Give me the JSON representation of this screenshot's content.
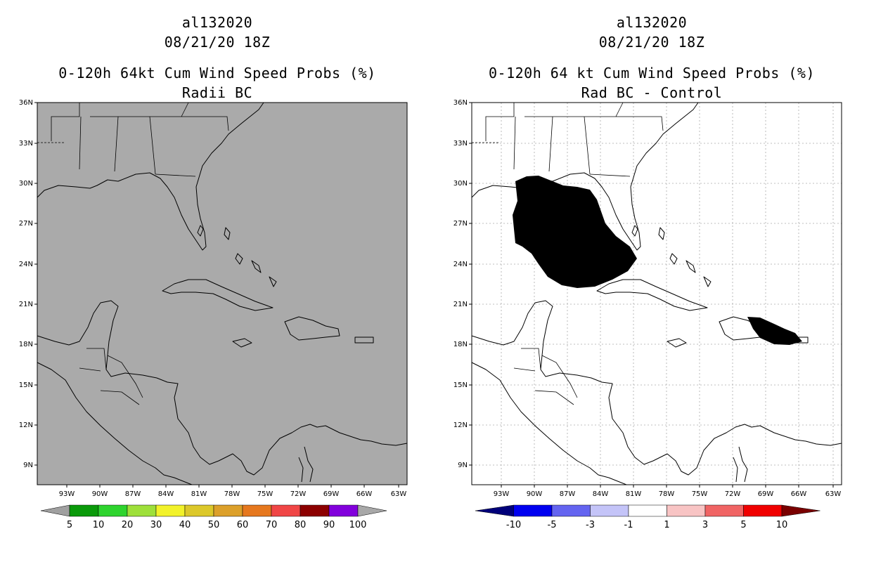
{
  "panels": [
    {
      "storm_id": "al132020",
      "datetime": "08/21/20 18Z",
      "product": "0-120h 64kt Cum Wind Speed Probs (%)",
      "subtitle": "Radii BC",
      "background_color": "#aaaaaa",
      "lat_labels": [
        "36N",
        "33N",
        "30N",
        "27N",
        "24N",
        "21N",
        "18N",
        "15N",
        "12N",
        "9N"
      ],
      "lon_labels": [
        "93W",
        "90W",
        "87W",
        "84W",
        "81W",
        "78W",
        "75W",
        "72W",
        "69W",
        "66W",
        "63W"
      ],
      "colorbar": {
        "colors": [
          "#a0a0a0",
          "#0a9a0a",
          "#2ed42e",
          "#9ee03a",
          "#f2f22a",
          "#dcc82a",
          "#dca02a",
          "#e6781e",
          "#f04646",
          "#8c0000",
          "#8200dc",
          "#a8a8a8"
        ],
        "labels": [
          "5",
          "10",
          "20",
          "30",
          "40",
          "50",
          "60",
          "70",
          "80",
          "90",
          "100"
        ]
      }
    },
    {
      "storm_id": "al132020",
      "datetime": "08/21/20 18Z",
      "product": "0-120h 64 kt Cum Wind Speed Probs (%)",
      "subtitle": "Rad BC - Control",
      "background_color": "#ffffff",
      "lat_labels": [
        "36N",
        "33N",
        "30N",
        "27N",
        "24N",
        "21N",
        "18N",
        "15N",
        "12N",
        "9N"
      ],
      "lon_labels": [
        "93W",
        "90W",
        "87W",
        "84W",
        "81W",
        "78W",
        "75W",
        "72W",
        "69W",
        "66W",
        "63W"
      ],
      "colorbar": {
        "colors": [
          "#00007a",
          "#0000f0",
          "#6464f0",
          "#c4c4f8",
          "#ffffff",
          "#f8c4c4",
          "#f06464",
          "#f00000",
          "#7a0000"
        ],
        "labels": [
          "-10",
          "-5",
          "-3",
          "-1",
          "1",
          "3",
          "5",
          "10"
        ]
      },
      "shading_colors": {
        "light": "#c4c4f8",
        "medium": "#6464f0",
        "dark": "#0000f0"
      }
    }
  ]
}
